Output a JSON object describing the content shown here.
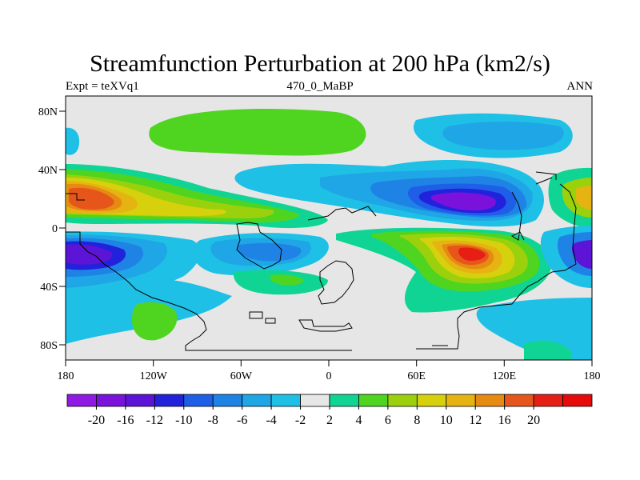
{
  "figure": {
    "title": "Streamfunction Perturbation at 200 hPa (km2/s)",
    "left_label": "Expt = teXVq1",
    "center_label": "470_0_MaBP",
    "right_label": "ANN"
  },
  "axes": {
    "x_ticks": [
      "180",
      "120W",
      "60W",
      "0",
      "60E",
      "120E",
      "180"
    ],
    "y_ticks": [
      "80N",
      "40N",
      "0",
      "40S",
      "80S"
    ]
  },
  "colorbar": {
    "colors": [
      "#8f1ae3",
      "#7a12dc",
      "#5c14d6",
      "#2222dd",
      "#1f5ee6",
      "#1f83e6",
      "#1fa6e6",
      "#1fc0e6",
      "#e6e6e6",
      "#10d494",
      "#4fd420",
      "#9ad10c",
      "#d6d10c",
      "#e6b412",
      "#e68a12",
      "#e6561a",
      "#e61e14",
      "#e60a0a"
    ],
    "labels": [
      "-20",
      "-16",
      "-12",
      "-10",
      "-8",
      "-6",
      "-4",
      "-2",
      "2",
      "4",
      "6",
      "8",
      "10",
      "12",
      "16",
      "20"
    ]
  }
}
